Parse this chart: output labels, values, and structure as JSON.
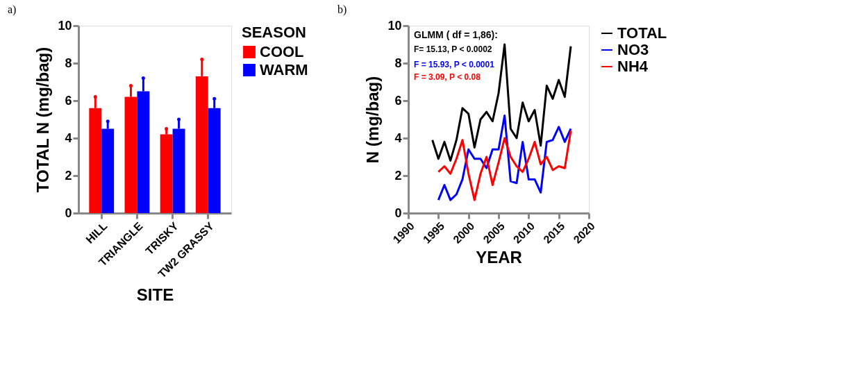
{
  "chart_data": [
    {
      "type": "bar",
      "title": "a)",
      "categories": [
        "HILL",
        "TRIANGLE",
        "TRISKY",
        "TW2 GRASSY"
      ],
      "xlabel": "SITE",
      "ylabel": "TOTAL N (mg/bag)",
      "legend_title": "SEASON",
      "ylim": [
        0,
        10
      ],
      "yticks": [
        0,
        2,
        4,
        6,
        8,
        10
      ],
      "grid": false,
      "legend": "right",
      "series": [
        {
          "name": "COOL",
          "color": "#ff0000",
          "values": [
            5.6,
            6.2,
            4.2,
            7.3
          ],
          "errors": [
            [
              5.6,
              6.2
            ],
            [
              6.2,
              6.8
            ],
            [
              4.2,
              4.5
            ],
            [
              7.3,
              8.2
            ]
          ]
        },
        {
          "name": "WARM",
          "color": "#0000ff",
          "values": [
            4.5,
            6.5,
            4.5,
            5.6
          ],
          "errors": [
            [
              4.5,
              4.9
            ],
            [
              6.5,
              7.2
            ],
            [
              4.5,
              5.0
            ],
            [
              5.6,
              6.1
            ]
          ]
        }
      ]
    },
    {
      "type": "line",
      "title": "b)",
      "xlabel": "YEAR",
      "ylabel": "N (mg/bag)",
      "xlim": [
        1990,
        2020
      ],
      "xticks": [
        1990,
        1995,
        2000,
        2005,
        2010,
        2015,
        2020
      ],
      "ylim": [
        0,
        10
      ],
      "yticks": [
        0,
        2,
        4,
        6,
        8,
        10
      ],
      "grid": false,
      "legend": "right",
      "annotations": [
        "GLMM ( df = 1,86):",
        "F= 15.13, P < 0.0002",
        "F = 15.93, P < 0.0001",
        "F = 3.09, P < 0.08"
      ],
      "series": [
        {
          "name": "TOTAL",
          "color": "#000000",
          "x": [
            1994,
            1995,
            1996,
            1997,
            1998,
            1999,
            2000,
            2001,
            2002,
            2003,
            2004,
            2005,
            2006,
            2007,
            2008,
            2009,
            2010,
            2011,
            2012,
            2013,
            2014,
            2015,
            2016,
            2017
          ],
          "values": [
            3.9,
            2.9,
            3.8,
            2.8,
            3.9,
            5.6,
            5.3,
            3.5,
            5.0,
            5.4,
            4.9,
            6.4,
            9.0,
            4.5,
            4.0,
            5.9,
            4.9,
            5.5,
            3.6,
            6.8,
            6.1,
            7.1,
            6.2,
            8.9
          ]
        },
        {
          "name": "NO3",
          "color": "#0000ff",
          "x": [
            1995,
            1996,
            1997,
            1998,
            1999,
            2000,
            2001,
            2002,
            2003,
            2004,
            2005,
            2006,
            2007,
            2008,
            2009,
            2010,
            2011,
            2012,
            2013,
            2014,
            2015,
            2016,
            2017
          ],
          "values": [
            0.7,
            1.5,
            0.7,
            1.0,
            1.8,
            3.4,
            2.9,
            2.9,
            2.4,
            3.4,
            3.4,
            5.2,
            1.7,
            1.6,
            3.8,
            1.8,
            1.8,
            1.1,
            3.8,
            3.9,
            4.6,
            3.8,
            4.5
          ]
        },
        {
          "name": "NH4",
          "color": "#ff0000",
          "x": [
            1995,
            1996,
            1997,
            1998,
            1999,
            2000,
            2001,
            2002,
            2003,
            2004,
            2005,
            2006,
            2007,
            2008,
            2009,
            2010,
            2011,
            2012,
            2013,
            2014,
            2015,
            2016,
            2017
          ],
          "values": [
            2.2,
            2.5,
            2.1,
            2.9,
            3.9,
            2.1,
            0.7,
            2.1,
            3.0,
            1.5,
            2.7,
            4.0,
            3.0,
            2.5,
            2.2,
            2.9,
            3.8,
            2.6,
            3.0,
            2.3,
            2.5,
            2.4,
            4.4
          ]
        }
      ]
    }
  ]
}
